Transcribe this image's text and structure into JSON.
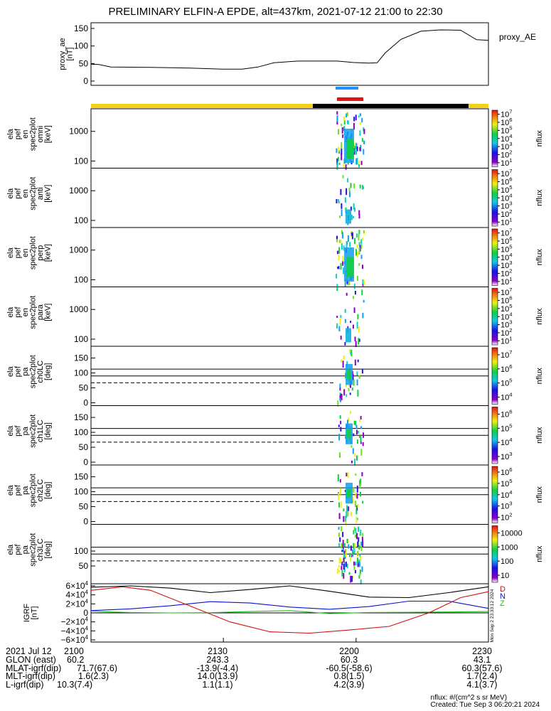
{
  "title": "PRELIMINARY ELFIN-A EPDE, alt=437km, 2021-07-12 21:00 to 22:30",
  "proxy_panel": {
    "ylabel_1": "proxy_ae",
    "ylabel_2": "[nT]",
    "legend": "proxy_AE",
    "ticks": [
      "150",
      "100",
      "50",
      "0"
    ],
    "tick_values": [
      150,
      100,
      50,
      0
    ],
    "series": [
      [
        0,
        48
      ],
      [
        0.02,
        47
      ],
      [
        0.05,
        40
      ],
      [
        0.15,
        39
      ],
      [
        0.25,
        37
      ],
      [
        0.33,
        34
      ],
      [
        0.38,
        34
      ],
      [
        0.42,
        40
      ],
      [
        0.46,
        52
      ],
      [
        0.52,
        57
      ],
      [
        0.62,
        57
      ],
      [
        0.66,
        53
      ],
      [
        0.7,
        51
      ],
      [
        0.72,
        52
      ],
      [
        0.74,
        80
      ],
      [
        0.78,
        119
      ],
      [
        0.83,
        142
      ],
      [
        0.88,
        146
      ],
      [
        0.93,
        145
      ],
      [
        0.97,
        118
      ],
      [
        1.0,
        116
      ]
    ]
  },
  "spec_panels": [
    {
      "name": "omni",
      "labels": [
        "ela",
        "pef",
        "en",
        "spec2plot",
        "omni",
        "[keV]"
      ],
      "ticks": [
        "1000",
        "100"
      ],
      "colorbar_ticks": [
        "10^7",
        "10^6",
        "10^5",
        "10^4",
        "10^3",
        "10^2",
        "10^1"
      ],
      "colorbar_label": "nflux"
    },
    {
      "name": "anti",
      "labels": [
        "ela",
        "pef",
        "en",
        "spec2plot",
        "anti",
        "[keV]"
      ],
      "ticks": [
        "1000",
        "100"
      ],
      "colorbar_ticks": [
        "10^7",
        "10^6",
        "10^5",
        "10^4",
        "10^3",
        "10^2",
        "10^1"
      ],
      "colorbar_label": "nflux"
    },
    {
      "name": "perp",
      "labels": [
        "ela",
        "pef",
        "en",
        "spec2plot",
        "perp",
        "[keV]"
      ],
      "ticks": [
        "1000",
        "100"
      ],
      "colorbar_ticks": [
        "10^7",
        "10^6",
        "10^5",
        "10^4",
        "10^3",
        "10^2",
        "10^1"
      ],
      "colorbar_label": "nflux"
    },
    {
      "name": "para",
      "labels": [
        "ela",
        "pef",
        "en",
        "spec2plot",
        "para",
        "[keV]"
      ],
      "ticks": [
        "1000",
        "100"
      ],
      "colorbar_ticks": [
        "10^7",
        "10^6",
        "10^5",
        "10^4",
        "10^3",
        "10^2",
        "10^1"
      ],
      "colorbar_label": "nflux"
    }
  ],
  "energy_ticks_values": [
    1000,
    100
  ],
  "pa_panels": [
    {
      "name": "ch0LC",
      "labels": [
        "ela",
        "pef",
        "pa",
        "spec2plot",
        "ch0LC",
        "[deg]"
      ],
      "ticks": [
        "150",
        "100",
        "50",
        "0"
      ],
      "colorbar_ticks": [
        "10^7",
        "10^6",
        "10^5",
        "10^4"
      ],
      "colorbar_label": "nflux"
    },
    {
      "name": "ch1LC",
      "labels": [
        "ela",
        "pef",
        "pa",
        "spec2plot",
        "ch1LC",
        "[deg]"
      ],
      "ticks": [
        "150",
        "100",
        "50",
        "0"
      ],
      "colorbar_ticks": [
        "10^6",
        "10^5",
        "10^4",
        "10^3"
      ],
      "colorbar_label": "nflux"
    },
    {
      "name": "ch2LC",
      "labels": [
        "ela",
        "pef",
        "pa",
        "spec2plot",
        "ch2LC",
        "[deg]"
      ],
      "ticks": [
        "150",
        "100",
        "50",
        "0"
      ],
      "colorbar_ticks": [
        "10^6",
        "10^5",
        "10^4",
        "10^3",
        "10^2"
      ],
      "colorbar_label": "nflux"
    },
    {
      "name": "ch3LC",
      "labels": [
        "ela",
        "pef",
        "pa",
        "spec2plot",
        "ch3LC",
        "[deg]"
      ],
      "ticks": [
        "100",
        "50"
      ],
      "colorbar_ticks": [
        "10000",
        "1000",
        "100",
        "10"
      ],
      "colorbar_label": "nflux"
    }
  ],
  "pa_tick_values": [
    150,
    100,
    50,
    0
  ],
  "igrf_panel": {
    "labels": [
      "IGRF",
      "[nT]"
    ],
    "ticks": [
      "6×10^4",
      "4×10^4",
      "2×10^4",
      "0",
      "−2×10^4",
      "−4×10^4",
      "−6×10^4"
    ],
    "tick_values": [
      60000,
      40000,
      20000,
      0,
      -20000,
      -40000,
      -60000
    ],
    "legend": [
      "D",
      "N",
      "Z"
    ],
    "side_text": "Mon Sep 2 23:33:12 2024",
    "series": {
      "total": [
        [
          0,
          57000
        ],
        [
          0.1,
          60000
        ],
        [
          0.2,
          55000
        ],
        [
          0.3,
          45000
        ],
        [
          0.4,
          52000
        ],
        [
          0.5,
          60000
        ],
        [
          0.6,
          48000
        ],
        [
          0.7,
          35000
        ],
        [
          0.8,
          34000
        ],
        [
          0.9,
          45000
        ],
        [
          1.0,
          58000
        ]
      ],
      "east": [
        [
          0,
          5000
        ],
        [
          0.1,
          9000
        ],
        [
          0.2,
          16000
        ],
        [
          0.3,
          25000
        ],
        [
          0.4,
          22000
        ],
        [
          0.5,
          13000
        ],
        [
          0.6,
          8000
        ],
        [
          0.7,
          14000
        ],
        [
          0.8,
          26000
        ],
        [
          0.9,
          26000
        ],
        [
          1.0,
          10000
        ]
      ],
      "north": [
        [
          0,
          4000
        ],
        [
          0.05,
          2000
        ],
        [
          0.1,
          1000
        ],
        [
          0.2,
          0
        ],
        [
          0.3,
          500
        ],
        [
          0.4,
          3000
        ],
        [
          0.5,
          5000
        ],
        [
          0.6,
          -1500
        ],
        [
          0.7,
          1000
        ],
        [
          0.8,
          1200
        ],
        [
          0.9,
          2000
        ],
        [
          1.0,
          3000
        ]
      ],
      "down": [
        [
          0,
          50000
        ],
        [
          0.08,
          58000
        ],
        [
          0.15,
          50000
        ],
        [
          0.25,
          15000
        ],
        [
          0.35,
          -20000
        ],
        [
          0.45,
          -42000
        ],
        [
          0.55,
          -45000
        ],
        [
          0.65,
          -38000
        ],
        [
          0.75,
          -30000
        ],
        [
          0.85,
          0
        ],
        [
          0.93,
          34000
        ],
        [
          1.0,
          47000
        ]
      ]
    }
  },
  "time_axis": {
    "ticks": [
      "2100",
      "2130",
      "2200",
      "2230"
    ],
    "tick_fracs": [
      0,
      0.333,
      0.667,
      1.0
    ]
  },
  "footer": {
    "rows": [
      {
        "label": "2021 Jul 12",
        "values": [
          "2100",
          "2130",
          "2200",
          "2230"
        ]
      },
      {
        "label": "GLON (east)",
        "values": [
          "60.2",
          "243.3",
          "60.3",
          "43.1"
        ]
      },
      {
        "label": "MLAT-igrf(dip)",
        "values": [
          "71.7(67.6)",
          "-13.9(-4.4)",
          "-60.5(-58.6)",
          "60.3(57.6)"
        ]
      },
      {
        "label": "MLT-igrf(dip)",
        "values": [
          "1.6(2.3)",
          "14.0(13.9)",
          "0.8(1.5)",
          "1.7(2.4)"
        ]
      },
      {
        "label": "L-igrf(dip)",
        "values": [
          "10.3(7.4)",
          "1.1(1.1)",
          "4.2(3.9)",
          "4.1(3.7)"
        ]
      }
    ]
  },
  "credits": {
    "units": "nflux: #/(cm^2 s sr MeV)",
    "created": "Created: Tue Sep  3 06:20:21 2024"
  },
  "colors": {
    "sun_bar": "#f5d21a",
    "shadow_bar": "#000000",
    "science_blue": "#1a8fff",
    "science_red": "#e81010",
    "igrf_total": "#000000",
    "igrf_east": "#1010cc",
    "igrf_north": "#20c020",
    "igrf_down": "#d01010"
  }
}
